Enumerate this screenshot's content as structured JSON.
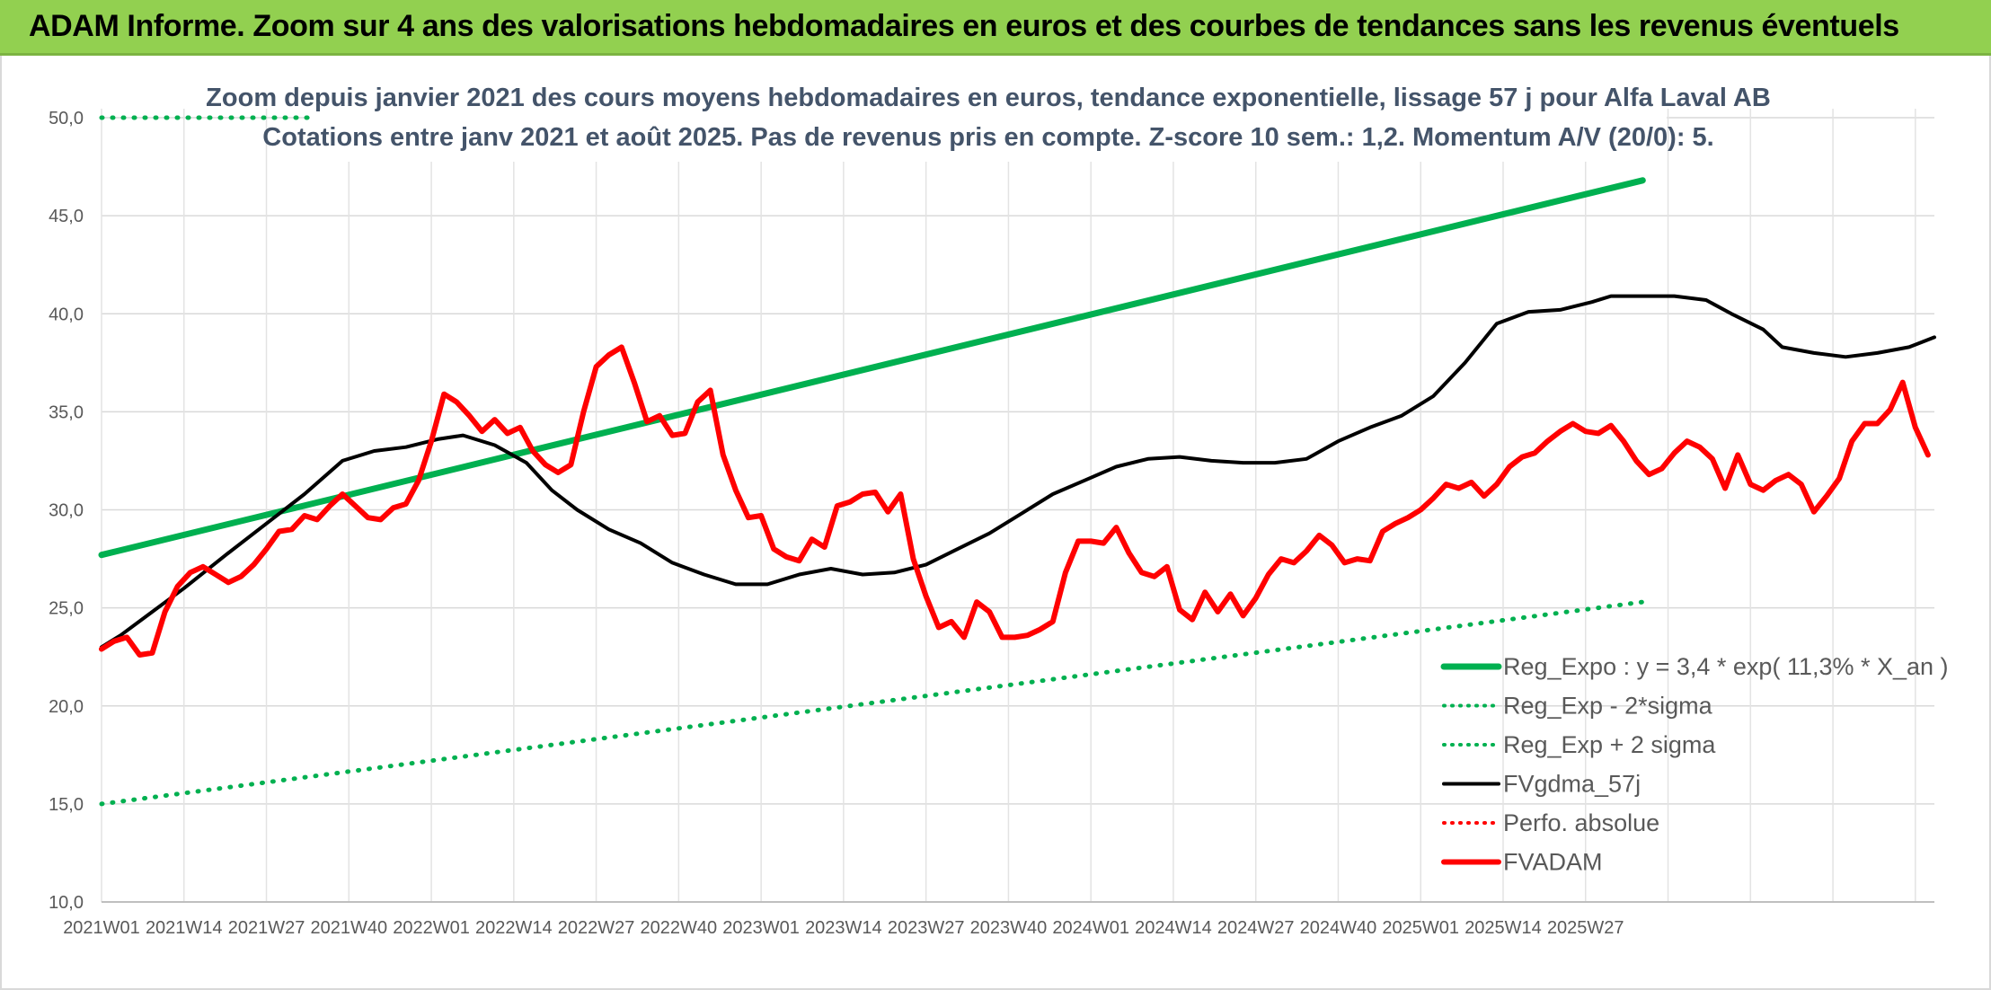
{
  "banner": {
    "title": "ADAM Informe. Zoom sur 4 ans des valorisations hebdomadaires en euros et des courbes de tendances sans les revenus éventuels"
  },
  "colors": {
    "trend_green": "#00b050",
    "adam_red": "#ff0000",
    "smooth_black": "#000000",
    "banner_green": "#92d050",
    "subtitle": "#44546a"
  },
  "chart_data": {
    "type": "line",
    "title": "Zoom depuis janvier 2021 des cours moyens hebdomadaires en euros, tendance exponentielle, lissage 57 j pour Alfa Laval AB",
    "subtitle": "Cotations entre janv 2021 et août 2025. Pas de revenus pris en compte. Z-score 10 sem.: 1,2. Momentum A/V (20/0): 5.",
    "xlabel": "",
    "ylabel": "",
    "ylim": [
      10,
      50
    ],
    "yticks": [
      "10,0",
      "15,0",
      "20,0",
      "25,0",
      "30,0",
      "35,0",
      "40,0",
      "45,0",
      "50,0"
    ],
    "x_tick_labels": [
      "2021W01",
      "2021W14",
      "2021W27",
      "2021W40",
      "2022W01",
      "2022W14",
      "2022W27",
      "2022W40",
      "2023W01",
      "2023W14",
      "2023W27",
      "2023W40",
      "2024W01",
      "2024W14",
      "2024W27",
      "2024W40",
      "2025W01",
      "2025W14",
      "2025W27"
    ],
    "grid": true,
    "legend_position": "bottom-right",
    "series": [
      {
        "name": "Reg_Expo : y = 3,4 * exp( 11,3% *  X_an )",
        "style": "solid-thick",
        "color": "#00b050",
        "points": [
          [
            0,
            27.7
          ],
          [
            243,
            46.8
          ]
        ]
      },
      {
        "name": "Reg_Exp - 2*sigma",
        "style": "dotted",
        "color": "#00b050",
        "points": [
          [
            0,
            15.0
          ],
          [
            243,
            25.3
          ]
        ]
      },
      {
        "name": "Reg_Exp + 2 sigma",
        "style": "dotted",
        "color": "#00b050",
        "points": [
          [
            0,
            50.0
          ],
          [
            243,
            50.0
          ]
        ]
      },
      {
        "name": "FVgdma_57j",
        "style": "solid",
        "color": "#000000",
        "points": [
          [
            0,
            23.0
          ],
          [
            3,
            23.6
          ],
          [
            8,
            24.8
          ],
          [
            13,
            26.0
          ],
          [
            20,
            27.8
          ],
          [
            26,
            29.3
          ],
          [
            32,
            30.8
          ],
          [
            38,
            32.5
          ],
          [
            43,
            33.0
          ],
          [
            48,
            33.2
          ],
          [
            53,
            33.6
          ],
          [
            57,
            33.8
          ],
          [
            62,
            33.3
          ],
          [
            67,
            32.4
          ],
          [
            71,
            31.0
          ],
          [
            75,
            30.0
          ],
          [
            80,
            29.0
          ],
          [
            85,
            28.3
          ],
          [
            90,
            27.3
          ],
          [
            95,
            26.7
          ],
          [
            100,
            26.2
          ],
          [
            105,
            26.2
          ],
          [
            110,
            26.7
          ],
          [
            115,
            27.0
          ],
          [
            120,
            26.7
          ],
          [
            125,
            26.8
          ],
          [
            130,
            27.2
          ],
          [
            135,
            28.0
          ],
          [
            140,
            28.8
          ],
          [
            145,
            29.8
          ],
          [
            150,
            30.8
          ],
          [
            155,
            31.5
          ],
          [
            160,
            32.2
          ],
          [
            165,
            32.6
          ],
          [
            170,
            32.7
          ],
          [
            175,
            32.5
          ],
          [
            180,
            32.4
          ],
          [
            185,
            32.4
          ],
          [
            190,
            32.6
          ],
          [
            195,
            33.5
          ],
          [
            200,
            34.2
          ],
          [
            205,
            34.8
          ],
          [
            210,
            35.8
          ],
          [
            215,
            37.5
          ],
          [
            220,
            39.5
          ],
          [
            225,
            40.1
          ],
          [
            230,
            40.2
          ],
          [
            235,
            40.6
          ],
          [
            238,
            40.9
          ],
          [
            243,
            40.9
          ],
          [
            248,
            40.9
          ],
          [
            253,
            40.7
          ],
          [
            257,
            40.0
          ],
          [
            262,
            39.2
          ],
          [
            265,
            38.3
          ],
          [
            270,
            38.0
          ],
          [
            275,
            37.8
          ],
          [
            280,
            38.0
          ],
          [
            285,
            38.3
          ],
          [
            289,
            38.8
          ]
        ]
      },
      {
        "name": "Perfo. absolue",
        "style": "dotted",
        "color": "#ff0000",
        "points": []
      },
      {
        "name": "FVADAM",
        "style": "solid-thick",
        "color": "#ff0000",
        "points": [
          [
            0,
            22.9
          ],
          [
            2,
            23.3
          ],
          [
            4,
            23.5
          ],
          [
            6,
            22.6
          ],
          [
            8,
            22.7
          ],
          [
            10,
            24.8
          ],
          [
            12,
            26.1
          ],
          [
            14,
            26.8
          ],
          [
            16,
            27.1
          ],
          [
            18,
            26.7
          ],
          [
            20,
            26.3
          ],
          [
            22,
            26.6
          ],
          [
            24,
            27.2
          ],
          [
            26,
            28.0
          ],
          [
            28,
            28.9
          ],
          [
            30,
            29.0
          ],
          [
            32,
            29.7
          ],
          [
            34,
            29.5
          ],
          [
            36,
            30.2
          ],
          [
            38,
            30.8
          ],
          [
            40,
            30.2
          ],
          [
            42,
            29.6
          ],
          [
            44,
            29.5
          ],
          [
            46,
            30.1
          ],
          [
            48,
            30.3
          ],
          [
            50,
            31.5
          ],
          [
            52,
            33.5
          ],
          [
            54,
            35.9
          ],
          [
            56,
            35.5
          ],
          [
            58,
            34.8
          ],
          [
            60,
            34.0
          ],
          [
            62,
            34.6
          ],
          [
            64,
            33.9
          ],
          [
            66,
            34.2
          ],
          [
            68,
            33.0
          ],
          [
            70,
            32.3
          ],
          [
            72,
            31.9
          ],
          [
            74,
            32.3
          ],
          [
            76,
            35.0
          ],
          [
            78,
            37.3
          ],
          [
            80,
            37.9
          ],
          [
            82,
            38.3
          ],
          [
            84,
            36.5
          ],
          [
            86,
            34.5
          ],
          [
            88,
            34.8
          ],
          [
            90,
            33.8
          ],
          [
            92,
            33.9
          ],
          [
            94,
            35.5
          ],
          [
            96,
            36.1
          ],
          [
            98,
            32.8
          ],
          [
            100,
            31.0
          ],
          [
            102,
            29.6
          ],
          [
            104,
            29.7
          ],
          [
            106,
            28.0
          ],
          [
            108,
            27.6
          ],
          [
            110,
            27.4
          ],
          [
            112,
            28.5
          ],
          [
            114,
            28.1
          ],
          [
            116,
            30.2
          ],
          [
            118,
            30.4
          ],
          [
            120,
            30.8
          ],
          [
            122,
            30.9
          ],
          [
            124,
            29.9
          ],
          [
            126,
            30.8
          ],
          [
            128,
            27.5
          ],
          [
            130,
            25.6
          ],
          [
            132,
            24.0
          ],
          [
            134,
            24.3
          ],
          [
            136,
            23.5
          ],
          [
            138,
            25.3
          ],
          [
            140,
            24.8
          ],
          [
            142,
            23.5
          ],
          [
            144,
            23.5
          ],
          [
            146,
            23.6
          ],
          [
            148,
            23.9
          ],
          [
            150,
            24.3
          ],
          [
            152,
            26.8
          ],
          [
            154,
            28.4
          ],
          [
            156,
            28.4
          ],
          [
            158,
            28.3
          ],
          [
            160,
            29.1
          ],
          [
            162,
            27.8
          ],
          [
            164,
            26.8
          ],
          [
            166,
            26.6
          ],
          [
            168,
            27.1
          ],
          [
            170,
            24.9
          ],
          [
            172,
            24.4
          ],
          [
            174,
            25.8
          ],
          [
            176,
            24.8
          ],
          [
            178,
            25.7
          ],
          [
            180,
            24.6
          ],
          [
            182,
            25.5
          ],
          [
            184,
            26.7
          ],
          [
            186,
            27.5
          ],
          [
            188,
            27.3
          ],
          [
            190,
            27.9
          ],
          [
            192,
            28.7
          ],
          [
            194,
            28.2
          ],
          [
            196,
            27.3
          ],
          [
            198,
            27.5
          ],
          [
            200,
            27.4
          ],
          [
            202,
            28.9
          ],
          [
            204,
            29.3
          ],
          [
            206,
            29.6
          ],
          [
            208,
            30.0
          ],
          [
            210,
            30.6
          ],
          [
            212,
            31.3
          ],
          [
            214,
            31.1
          ],
          [
            216,
            31.4
          ],
          [
            218,
            30.7
          ],
          [
            220,
            31.3
          ],
          [
            222,
            32.2
          ],
          [
            224,
            32.7
          ],
          [
            226,
            32.9
          ],
          [
            228,
            33.5
          ],
          [
            230,
            34.0
          ],
          [
            232,
            34.4
          ],
          [
            234,
            34.0
          ],
          [
            236,
            33.9
          ],
          [
            238,
            34.3
          ],
          [
            240,
            33.5
          ],
          [
            242,
            32.5
          ],
          [
            244,
            31.8
          ],
          [
            246,
            32.1
          ],
          [
            248,
            32.9
          ],
          [
            250,
            33.5
          ],
          [
            252,
            33.2
          ],
          [
            254,
            32.6
          ],
          [
            256,
            31.1
          ],
          [
            258,
            32.8
          ],
          [
            260,
            31.3
          ],
          [
            262,
            31.0
          ],
          [
            264,
            31.5
          ],
          [
            266,
            31.8
          ],
          [
            268,
            31.3
          ],
          [
            270,
            29.9
          ],
          [
            272,
            30.7
          ],
          [
            274,
            31.6
          ],
          [
            276,
            33.5
          ],
          [
            278,
            34.4
          ],
          [
            280,
            34.4
          ],
          [
            282,
            35.1
          ],
          [
            284,
            36.5
          ],
          [
            286,
            34.2
          ],
          [
            288,
            32.8
          ]
        ]
      }
    ]
  }
}
